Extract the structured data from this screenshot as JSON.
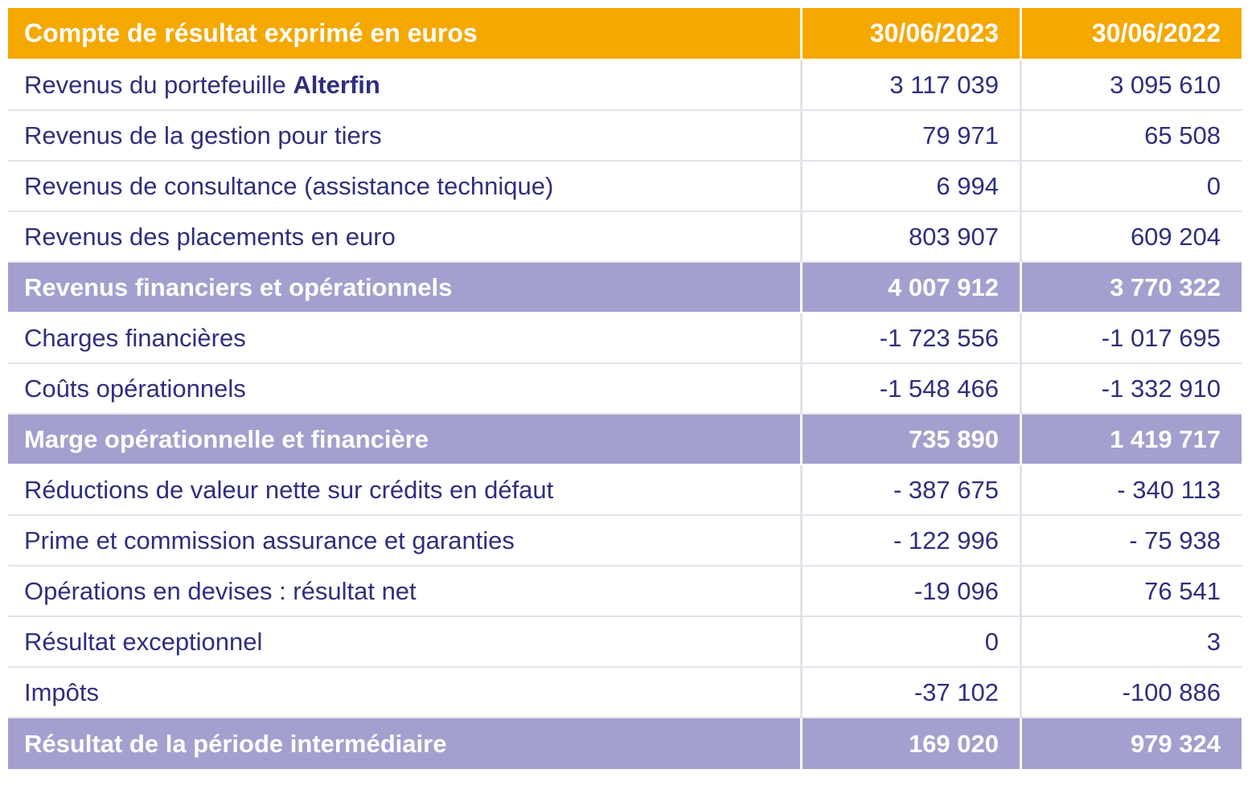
{
  "table": {
    "header": {
      "label": "Compte de résultat exprimé en euros",
      "col1": "30/06/2023",
      "col2": "30/06/2022"
    },
    "rows": [
      {
        "label_prefix": "Revenus du portefeuille ",
        "label_brand": "Alterfin",
        "v2023": "3 117 039",
        "v2022": "3 095 610"
      },
      {
        "label": "Revenus de la gestion pour tiers",
        "v2023": "79 971",
        "v2022": "65 508"
      },
      {
        "label": "Revenus de consultance (assistance technique)",
        "v2023": "6 994",
        "v2022": "0"
      },
      {
        "label": "Revenus des placements en euro",
        "v2023": "803 907",
        "v2022": "609 204"
      },
      {
        "label": "Revenus financiers et opérationnels",
        "v2023": "4 007 912",
        "v2022": "3 770 322"
      },
      {
        "label": "Charges financières",
        "v2023": "-1 723 556",
        "v2022": "-1 017 695"
      },
      {
        "label": "Coûts opérationnels",
        "v2023": "-1 548 466",
        "v2022": "-1 332 910"
      },
      {
        "label": "Marge opérationnelle et financière",
        "v2023": "735 890",
        "v2022": "1 419 717"
      },
      {
        "label": "Réductions de valeur nette sur crédits en défaut",
        "v2023": "- 387 675",
        "v2022": "- 340 113"
      },
      {
        "label": "Prime et commission assurance et garanties",
        "v2023": "- 122 996",
        "v2022": "- 75 938"
      },
      {
        "label": "Opérations en devises : résultat net",
        "v2023": "-19 096",
        "v2022": "76 541"
      },
      {
        "label": "Résultat exceptionnel",
        "v2023": "0",
        "v2022": "3"
      },
      {
        "label": "Impôts",
        "v2023": "-37 102",
        "v2022": "-100 886"
      },
      {
        "label": "Résultat de la période intermédiaire",
        "v2023": "169 020",
        "v2022": "979 324"
      }
    ]
  },
  "colors": {
    "header_bg": "#f5a800",
    "subtotal_bg": "#a3a0cf",
    "text": "#2e2f7d"
  }
}
